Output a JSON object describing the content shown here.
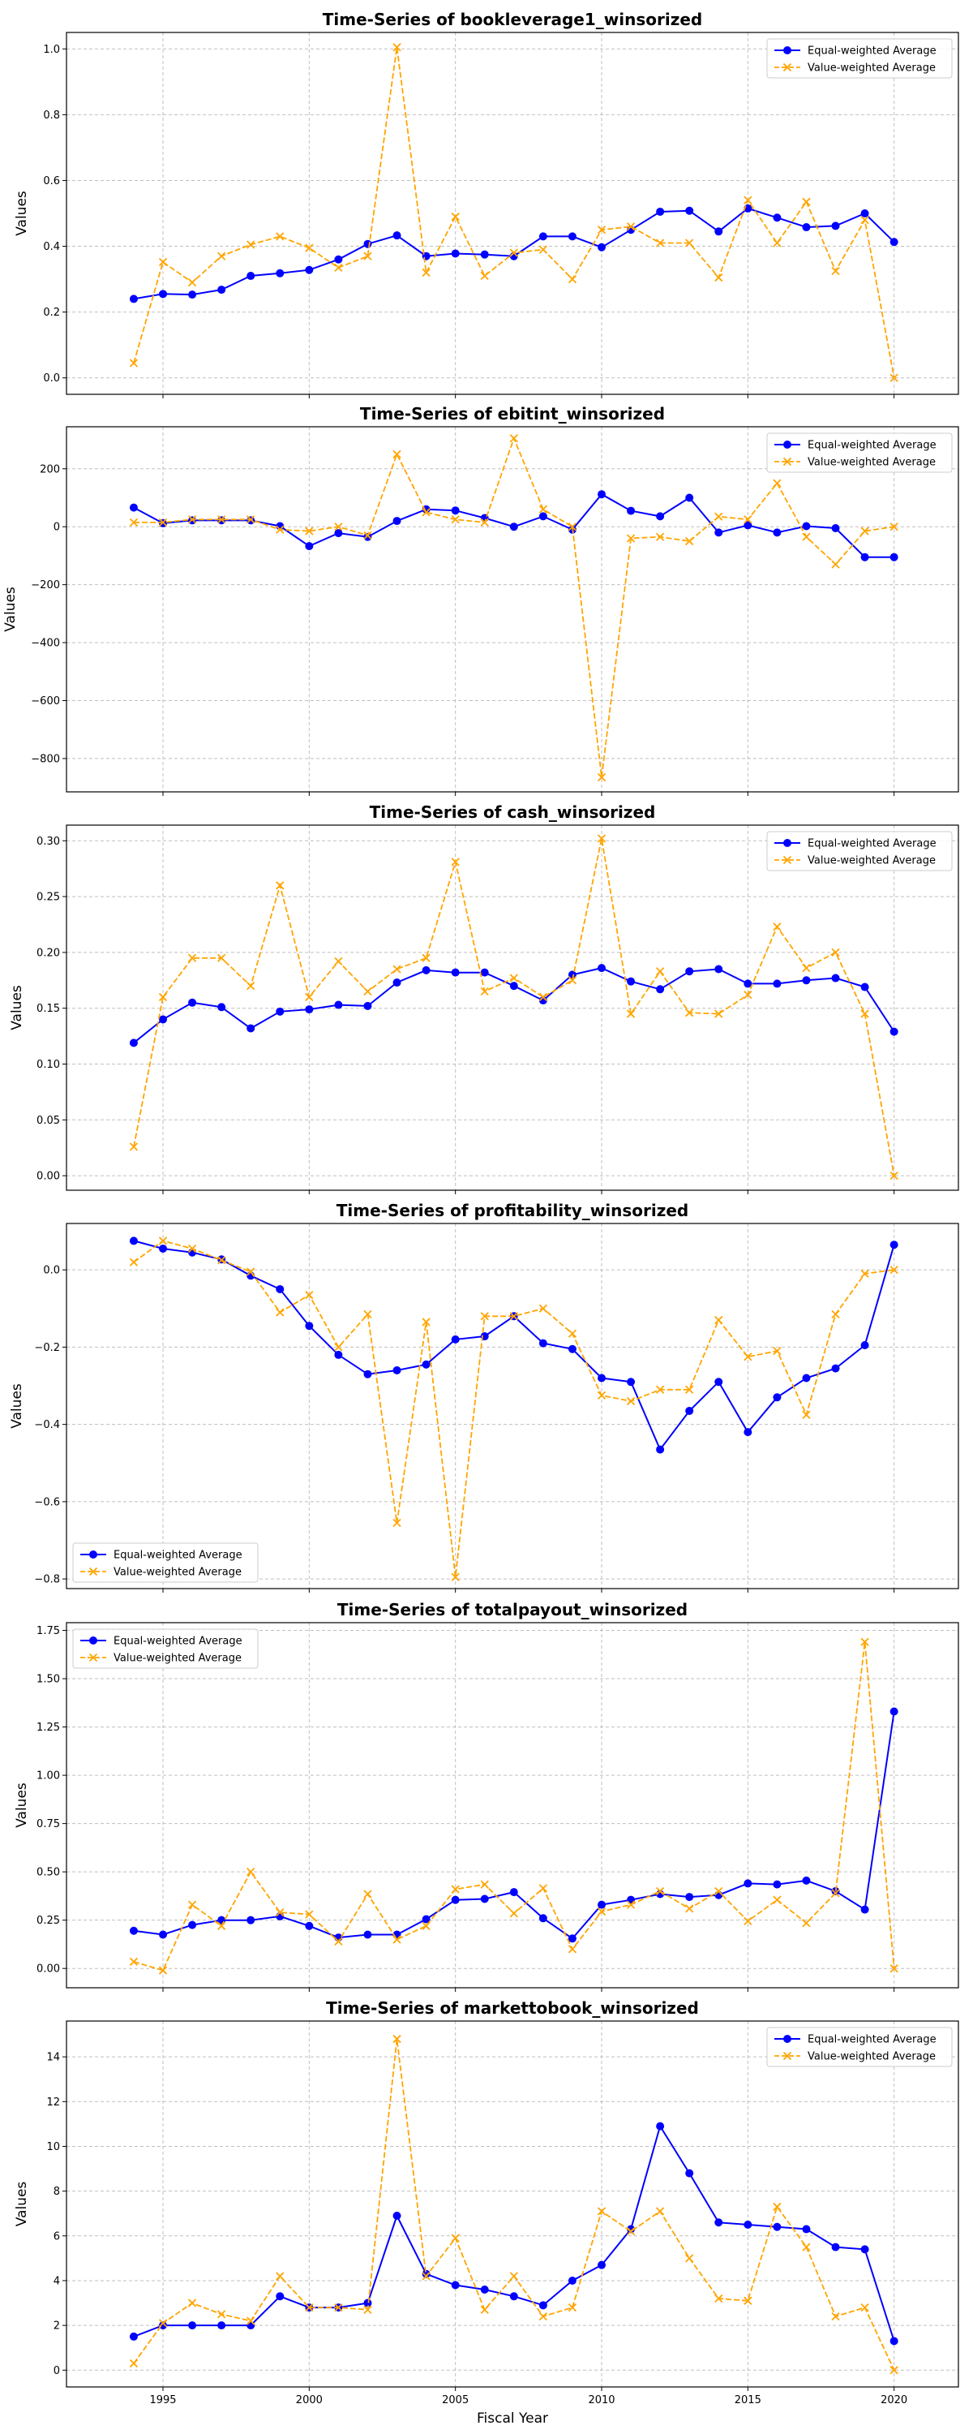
{
  "colors": {
    "equal": "#0000ff",
    "value": "#ffa500"
  },
  "legend_labels": [
    "Equal-weighted Average",
    "Value-weighted Average"
  ],
  "xlabel": "Fiscal Year",
  "chart_data": [
    {
      "type": "line",
      "title": "Time-Series of bookleverage1_winsorized",
      "ylabel": "Values",
      "xlabel": "",
      "x": [
        1994,
        1995,
        1996,
        1997,
        1998,
        1999,
        2000,
        2001,
        2002,
        2003,
        2004,
        2005,
        2006,
        2007,
        2008,
        2009,
        2010,
        2011,
        2012,
        2013,
        2014,
        2015,
        2016,
        2017,
        2018,
        2019,
        2020
      ],
      "xlim": [
        1991.7,
        2022.2
      ],
      "ylim": [
        -0.05,
        1.05
      ],
      "yticks": [
        0.0,
        0.2,
        0.4,
        0.6,
        0.8,
        1.0
      ],
      "ytick_labels": [
        "0.0",
        "0.2",
        "0.4",
        "0.6",
        "0.8",
        "1.0"
      ],
      "legend": "top-right",
      "grid": true,
      "series": [
        {
          "name": "Equal-weighted Average",
          "style": "solid",
          "marker": "circle",
          "values": [
            0.24,
            0.255,
            0.253,
            0.268,
            0.31,
            0.318,
            0.328,
            0.36,
            0.407,
            0.433,
            0.37,
            0.378,
            0.375,
            0.37,
            0.43,
            0.43,
            0.397,
            0.45,
            0.505,
            0.508,
            0.445,
            0.515,
            0.487,
            0.458,
            0.462,
            0.5,
            0.413
          ]
        },
        {
          "name": "Value-weighted Average",
          "style": "dashed",
          "marker": "x",
          "values": [
            0.045,
            0.352,
            0.29,
            0.37,
            0.405,
            0.43,
            0.395,
            0.335,
            0.37,
            1.005,
            0.32,
            0.49,
            0.31,
            0.38,
            0.39,
            0.3,
            0.45,
            0.46,
            0.41,
            0.41,
            0.305,
            0.54,
            0.41,
            0.535,
            0.325,
            0.48,
            0.0
          ]
        }
      ]
    },
    {
      "type": "line",
      "title": "Time-Series of ebitint_winsorized",
      "ylabel": "Values",
      "xlabel": "",
      "x": [
        1994,
        1995,
        1996,
        1997,
        1998,
        1999,
        2000,
        2001,
        2002,
        2003,
        2004,
        2005,
        2006,
        2007,
        2008,
        2009,
        2010,
        2011,
        2012,
        2013,
        2014,
        2015,
        2016,
        2017,
        2018,
        2019,
        2020
      ],
      "xlim": [
        1991.7,
        2022.2
      ],
      "ylim": [
        -915,
        345
      ],
      "yticks": [
        -800,
        -600,
        -400,
        -200,
        0,
        200
      ],
      "ytick_labels": [
        "−800",
        "−600",
        "−400",
        "−200",
        "0",
        "200"
      ],
      "legend": "top-right",
      "grid": true,
      "series": [
        {
          "name": "Equal-weighted Average",
          "style": "solid",
          "marker": "circle",
          "values": [
            66,
            12,
            22,
            22,
            22,
            2,
            -67,
            -22,
            -35,
            20,
            60,
            56,
            30,
            0,
            36,
            -10,
            112,
            55,
            36,
            100,
            -20,
            5,
            -20,
            2,
            -5,
            -105,
            -105
          ]
        },
        {
          "name": "Value-weighted Average",
          "style": "dashed",
          "marker": "x",
          "values": [
            15,
            15,
            25,
            25,
            25,
            -10,
            -15,
            0,
            -30,
            250,
            50,
            25,
            15,
            305,
            60,
            0,
            -865,
            -40,
            -35,
            -50,
            35,
            25,
            150,
            -35,
            -130,
            -15,
            0
          ]
        }
      ]
    },
    {
      "type": "line",
      "title": "Time-Series of cash_winsorized",
      "ylabel": "Values",
      "xlabel": "",
      "x": [
        1994,
        1995,
        1996,
        1997,
        1998,
        1999,
        2000,
        2001,
        2002,
        2003,
        2004,
        2005,
        2006,
        2007,
        2008,
        2009,
        2010,
        2011,
        2012,
        2013,
        2014,
        2015,
        2016,
        2017,
        2018,
        2019,
        2020
      ],
      "xlim": [
        1991.7,
        2022.2
      ],
      "ylim": [
        -0.013,
        0.314
      ],
      "yticks": [
        0.0,
        0.05,
        0.1,
        0.15,
        0.2,
        0.25,
        0.3
      ],
      "ytick_labels": [
        "0.00",
        "0.05",
        "0.10",
        "0.15",
        "0.20",
        "0.25",
        "0.30"
      ],
      "legend": "top-right",
      "grid": true,
      "series": [
        {
          "name": "Equal-weighted Average",
          "style": "solid",
          "marker": "circle",
          "values": [
            0.119,
            0.14,
            0.155,
            0.151,
            0.132,
            0.147,
            0.149,
            0.153,
            0.152,
            0.173,
            0.184,
            0.182,
            0.182,
            0.17,
            0.157,
            0.18,
            0.186,
            0.174,
            0.167,
            0.183,
            0.185,
            0.172,
            0.172,
            0.175,
            0.177,
            0.169,
            0.129
          ]
        },
        {
          "name": "Value-weighted Average",
          "style": "dashed",
          "marker": "x",
          "values": [
            0.026,
            0.16,
            0.195,
            0.195,
            0.17,
            0.26,
            0.16,
            0.192,
            0.165,
            0.185,
            0.195,
            0.281,
            0.165,
            0.177,
            0.16,
            0.175,
            0.302,
            0.145,
            0.183,
            0.146,
            0.145,
            0.162,
            0.223,
            0.186,
            0.2,
            0.145,
            0.0
          ]
        }
      ]
    },
    {
      "type": "line",
      "title": "Time-Series of profitability_winsorized",
      "ylabel": "Values",
      "xlabel": "",
      "x": [
        1994,
        1995,
        1996,
        1997,
        1998,
        1999,
        2000,
        2001,
        2002,
        2003,
        2004,
        2005,
        2006,
        2007,
        2008,
        2009,
        2010,
        2011,
        2012,
        2013,
        2014,
        2015,
        2016,
        2017,
        2018,
        2019,
        2020
      ],
      "xlim": [
        1991.7,
        2022.2
      ],
      "ylim": [
        -0.825,
        0.12
      ],
      "yticks": [
        -0.8,
        -0.6,
        -0.4,
        -0.2,
        0.0
      ],
      "ytick_labels": [
        "−0.8",
        "−0.6",
        "−0.4",
        "−0.2",
        "0.0"
      ],
      "legend": "bottom-left",
      "grid": true,
      "series": [
        {
          "name": "Equal-weighted Average",
          "style": "solid",
          "marker": "circle",
          "values": [
            0.075,
            0.055,
            0.045,
            0.027,
            -0.015,
            -0.05,
            -0.145,
            -0.22,
            -0.27,
            -0.26,
            -0.245,
            -0.18,
            -0.172,
            -0.12,
            -0.19,
            -0.205,
            -0.28,
            -0.29,
            -0.465,
            -0.365,
            -0.29,
            -0.42,
            -0.33,
            -0.28,
            -0.255,
            -0.195,
            0.065
          ]
        },
        {
          "name": "Value-weighted Average",
          "style": "dashed",
          "marker": "x",
          "values": [
            0.02,
            0.075,
            0.055,
            0.025,
            -0.005,
            -0.11,
            -0.065,
            -0.2,
            -0.115,
            -0.655,
            -0.135,
            -0.795,
            -0.12,
            -0.12,
            -0.1,
            -0.165,
            -0.325,
            -0.34,
            -0.31,
            -0.31,
            -0.13,
            -0.225,
            -0.21,
            -0.375,
            -0.115,
            -0.01,
            0.0
          ]
        }
      ]
    },
    {
      "type": "line",
      "title": "Time-Series of totalpayout_winsorized",
      "ylabel": "Values",
      "xlabel": "",
      "x": [
        1994,
        1995,
        1996,
        1997,
        1998,
        1999,
        2000,
        2001,
        2002,
        2003,
        2004,
        2005,
        2006,
        2007,
        2008,
        2009,
        2010,
        2011,
        2012,
        2013,
        2014,
        2015,
        2016,
        2017,
        2018,
        2019,
        2020
      ],
      "xlim": [
        1991.7,
        2022.2
      ],
      "ylim": [
        -0.1,
        1.79
      ],
      "yticks": [
        0.0,
        0.25,
        0.5,
        0.75,
        1.0,
        1.25,
        1.5,
        1.75
      ],
      "ytick_labels": [
        "0.00",
        "0.25",
        "0.50",
        "0.75",
        "1.00",
        "1.25",
        "1.50",
        "1.75"
      ],
      "legend": "top-left",
      "grid": true,
      "series": [
        {
          "name": "Equal-weighted Average",
          "style": "solid",
          "marker": "circle",
          "values": [
            0.195,
            0.175,
            0.225,
            0.25,
            0.25,
            0.27,
            0.22,
            0.16,
            0.175,
            0.175,
            0.255,
            0.355,
            0.36,
            0.395,
            0.26,
            0.155,
            0.33,
            0.355,
            0.385,
            0.37,
            0.38,
            0.44,
            0.435,
            0.455,
            0.4,
            0.305,
            1.33
          ]
        },
        {
          "name": "Value-weighted Average",
          "style": "dashed",
          "marker": "x",
          "values": [
            0.035,
            -0.01,
            0.33,
            0.22,
            0.5,
            0.29,
            0.28,
            0.14,
            0.385,
            0.15,
            0.22,
            0.41,
            0.435,
            0.285,
            0.415,
            0.1,
            0.295,
            0.33,
            0.4,
            0.31,
            0.4,
            0.245,
            0.355,
            0.235,
            0.39,
            1.69,
            0.0
          ]
        }
      ]
    },
    {
      "type": "line",
      "title": "Time-Series of markettobook_winsorized",
      "ylabel": "Values",
      "xlabel": "Fiscal Year",
      "x": [
        1994,
        1995,
        1996,
        1997,
        1998,
        1999,
        2000,
        2001,
        2002,
        2003,
        2004,
        2005,
        2006,
        2007,
        2008,
        2009,
        2010,
        2011,
        2012,
        2013,
        2014,
        2015,
        2016,
        2017,
        2018,
        2019,
        2020
      ],
      "xlim": [
        1991.7,
        2022.2
      ],
      "ylim": [
        -0.75,
        15.6
      ],
      "yticks": [
        0,
        2,
        4,
        6,
        8,
        10,
        12,
        14
      ],
      "ytick_labels": [
        "0",
        "2",
        "4",
        "6",
        "8",
        "10",
        "12",
        "14"
      ],
      "xticks": [
        1995,
        2000,
        2005,
        2010,
        2015,
        2020
      ],
      "xtick_labels": [
        "1995",
        "2000",
        "2005",
        "2010",
        "2015",
        "2020"
      ],
      "legend": "top-right",
      "grid": true,
      "series": [
        {
          "name": "Equal-weighted Average",
          "style": "solid",
          "marker": "circle",
          "values": [
            1.5,
            2.0,
            2.0,
            2.0,
            2.0,
            3.3,
            2.8,
            2.8,
            3.0,
            6.9,
            4.3,
            3.8,
            3.6,
            3.3,
            2.9,
            4.0,
            4.7,
            6.3,
            10.9,
            8.8,
            6.6,
            6.5,
            6.4,
            6.3,
            5.5,
            5.4,
            1.3
          ]
        },
        {
          "name": "Value-weighted Average",
          "style": "dashed",
          "marker": "x",
          "values": [
            0.3,
            2.1,
            3.0,
            2.5,
            2.2,
            4.2,
            2.8,
            2.8,
            2.7,
            14.8,
            4.2,
            5.9,
            2.7,
            4.2,
            2.4,
            2.8,
            7.1,
            6.2,
            7.1,
            5.0,
            3.2,
            3.1,
            7.3,
            5.5,
            2.4,
            2.8,
            0.0
          ]
        }
      ]
    }
  ]
}
